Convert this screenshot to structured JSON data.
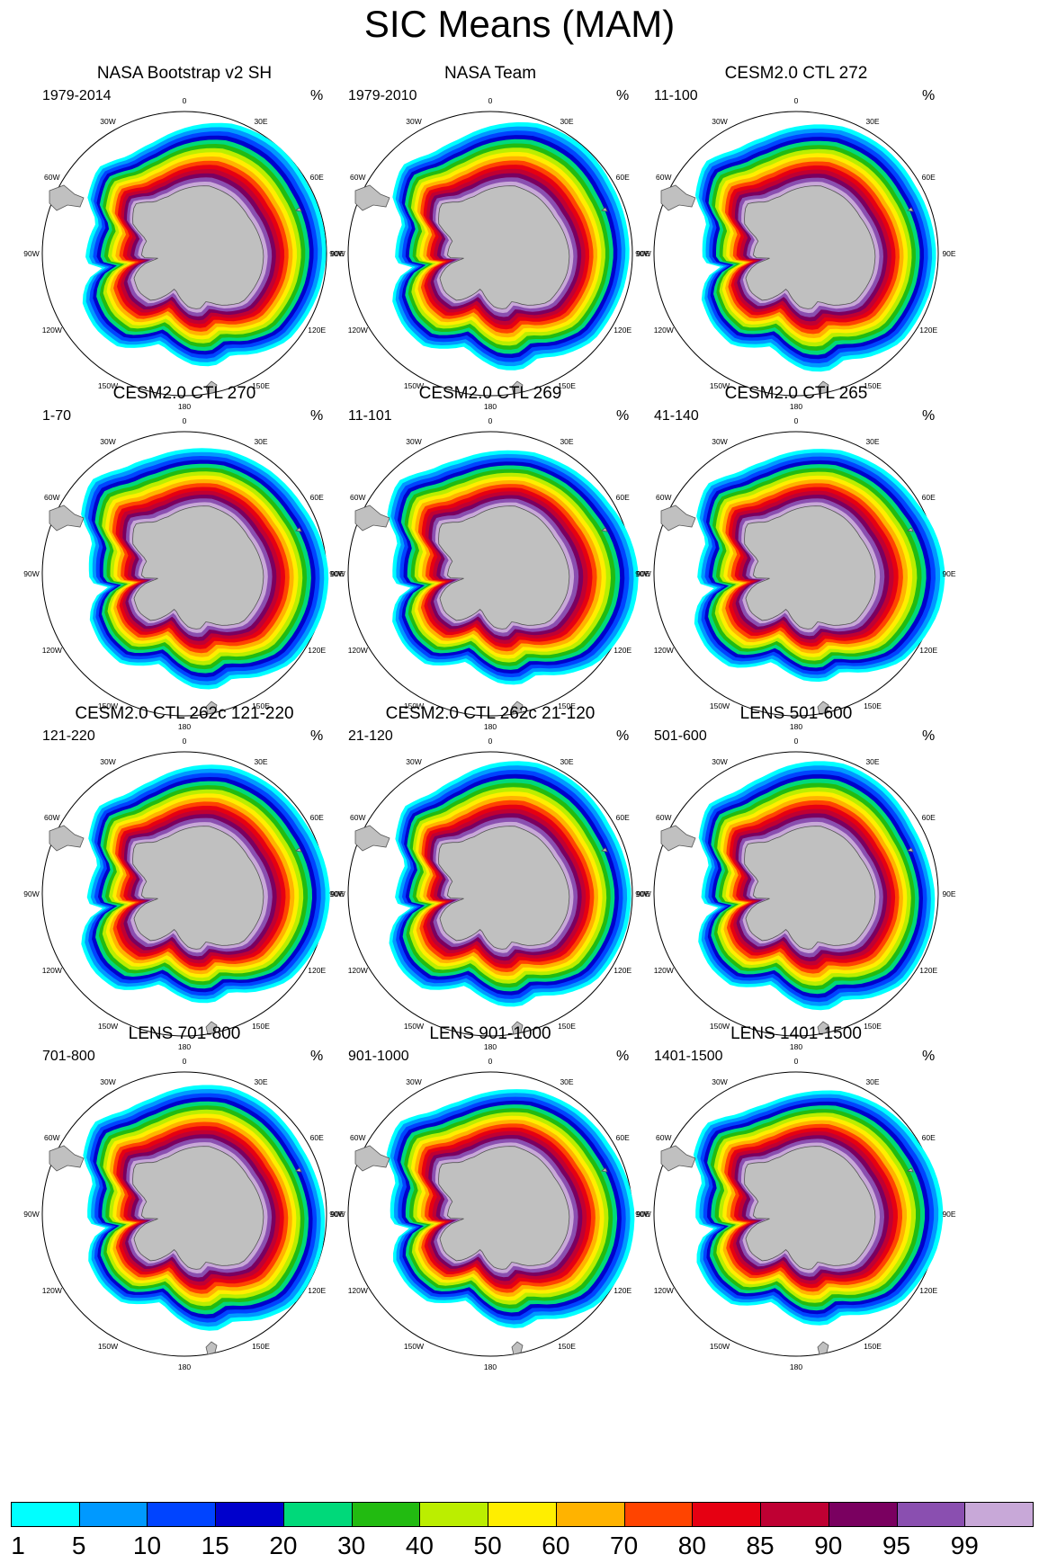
{
  "title": "SIC Means (MAM)",
  "unit_label": "%",
  "lon_labels": [
    "0",
    "30E",
    "60E",
    "90E",
    "120E",
    "150E",
    "180",
    "150W",
    "120W",
    "90W",
    "60W",
    "30W"
  ],
  "panels": [
    {
      "title": "NASA Bootstrap v2 SH",
      "period": "1979-2014"
    },
    {
      "title": "NASA Team",
      "period": "1979-2010"
    },
    {
      "title": "CESM2.0 CTL 272",
      "period": "11-100"
    },
    {
      "title": "CESM2.0 CTL 270",
      "period": "1-70"
    },
    {
      "title": "CESM2.0 CTL 269",
      "period": "11-101"
    },
    {
      "title": "CESM2.0 CTL 265",
      "period": "41-140"
    },
    {
      "title": "CESM2.0 CTL 262c 121-220",
      "period": "121-220"
    },
    {
      "title": "CESM2.0 CTL 262c 21-120",
      "period": "21-120"
    },
    {
      "title": "LENS 501-600",
      "period": "501-600"
    },
    {
      "title": "LENS 701-800",
      "period": "701-800"
    },
    {
      "title": "LENS 901-1000",
      "period": "901-1000"
    },
    {
      "title": "LENS 1401-1500",
      "period": "1401-1500"
    }
  ],
  "chart_data": {
    "type": "heatmap",
    "title": "SIC Means (MAM)",
    "projection": "south polar stereographic",
    "variable": "sea ice concentration",
    "units": "%",
    "colorbar": {
      "levels": [
        "1",
        "5",
        "10",
        "15",
        "20",
        "30",
        "40",
        "50",
        "60",
        "70",
        "80",
        "85",
        "90",
        "95",
        "99"
      ],
      "colors": [
        "#00ffff",
        "#0099ff",
        "#0044ff",
        "#0000cc",
        "#00d97a",
        "#22bb11",
        "#bbee00",
        "#ffee00",
        "#ffb300",
        "#ff4400",
        "#e60012",
        "#bf0033",
        "#7a0060",
        "#8a4fb0",
        "#c8a8d8"
      ]
    },
    "land_color": "#c0c0c0"
  }
}
